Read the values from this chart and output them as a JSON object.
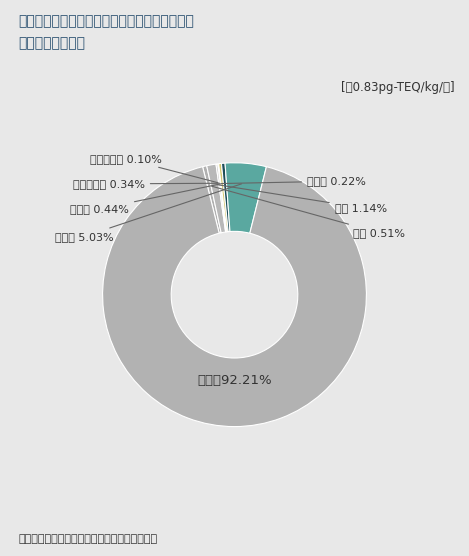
{
  "title_line1": "日本におけるダイオキシン類の１人１日摂取量",
  "title_line2": "（平成２２年度）",
  "subtitle": "[約0.83pg-TEQ/kg/日]",
  "source": "資料：厚生労働省・環境省資料より環境省作成",
  "wedge_labels": [
    "土壌",
    "大気",
    "その他",
    "砂糖・菓子",
    "乳・乳製品",
    "調味料",
    "肉・卵",
    "魚介類"
  ],
  "wedge_values": [
    0.51,
    1.14,
    0.22,
    0.1,
    0.34,
    0.44,
    5.03,
    92.21
  ],
  "wedge_colors": [
    "#b0b0b0",
    "#b8b8b8",
    "#c2c2c2",
    "#c8b850",
    "#d4c870",
    "#1e4d58",
    "#5aa8a0",
    "#b2b2b2"
  ],
  "background_color": "#e8e8e8",
  "text_color": "#333333",
  "title_color": "#2a5070",
  "line_color": "#666666"
}
